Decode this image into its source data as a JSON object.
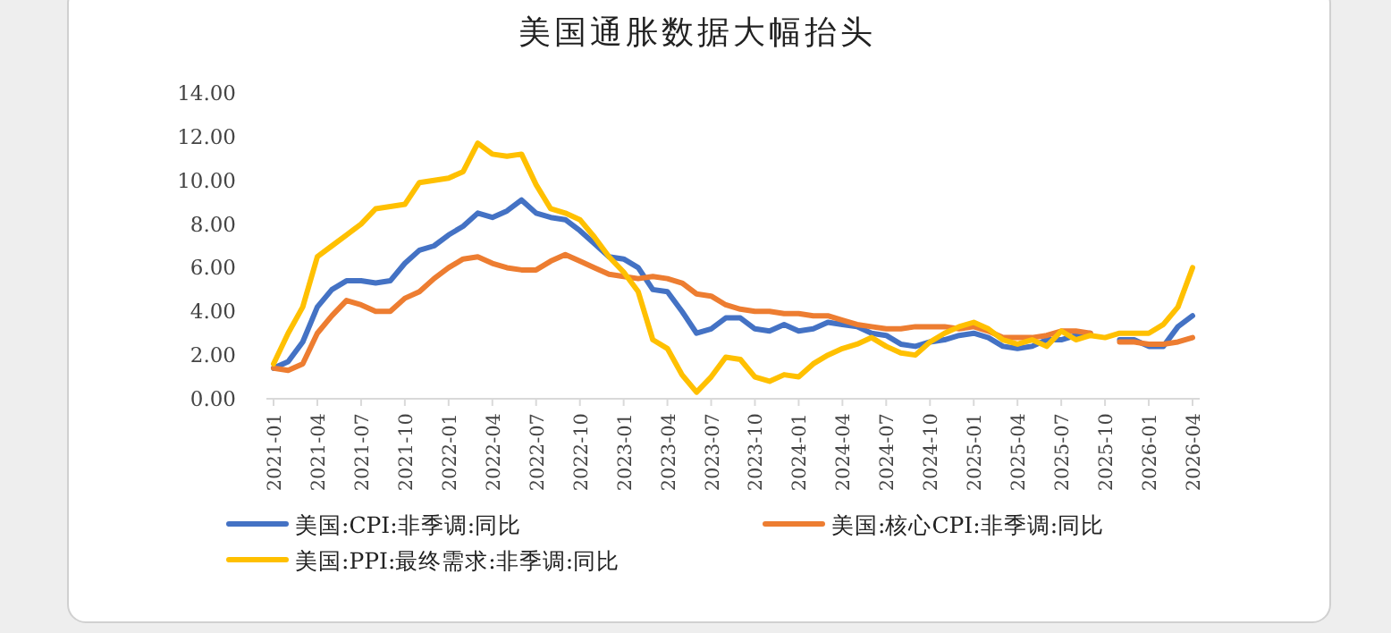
{
  "chart_data": {
    "type": "line",
    "title": "美国通胀数据大幅抬头",
    "categories": [
      "2021-01",
      null,
      null,
      "2021-04",
      null,
      null,
      "2021-07",
      null,
      null,
      "2021-10",
      null,
      null,
      "2022-01",
      null,
      null,
      "2022-04",
      null,
      null,
      "2022-07",
      null,
      null,
      "2022-10",
      null,
      null,
      "2023-01",
      null,
      null,
      "2023-04",
      null,
      null,
      "2023-07",
      null,
      null,
      "2023-10",
      null,
      null,
      "2024-01",
      null,
      null,
      "2024-04",
      null,
      null,
      "2024-07",
      null,
      null,
      "2024-10",
      null,
      null,
      "2025-01",
      null,
      null,
      "2025-04",
      null,
      null,
      "2025-07",
      null,
      null,
      "2025-10",
      null,
      null,
      "2026-01",
      null,
      null,
      "2026-04"
    ],
    "series": [
      {
        "name": "美国:CPI:非季调:同比",
        "color": "#4472c4",
        "values": [
          1.4,
          1.7,
          2.6,
          4.2,
          5.0,
          5.4,
          5.4,
          5.3,
          5.4,
          6.2,
          6.8,
          7.0,
          7.5,
          7.9,
          8.5,
          8.3,
          8.6,
          9.1,
          8.5,
          8.3,
          8.2,
          7.7,
          7.1,
          6.5,
          6.4,
          6.0,
          5.0,
          4.9,
          4.0,
          3.0,
          3.2,
          3.7,
          3.7,
          3.2,
          3.1,
          3.4,
          3.1,
          3.2,
          3.5,
          3.4,
          3.3,
          3.0,
          2.9,
          2.5,
          2.4,
          2.6,
          2.7,
          2.9,
          3.0,
          2.8,
          2.4,
          2.3,
          2.4,
          2.7,
          2.7,
          2.9,
          3.0,
          null,
          2.7,
          2.7,
          2.4,
          2.4,
          3.3,
          3.8
        ]
      },
      {
        "name": "美国:核心CPI:非季调:同比",
        "color": "#ed7d31",
        "values": [
          1.4,
          1.3,
          1.6,
          3.0,
          3.8,
          4.5,
          4.3,
          4.0,
          4.0,
          4.6,
          4.9,
          5.5,
          6.0,
          6.4,
          6.5,
          6.2,
          6.0,
          5.9,
          5.9,
          6.3,
          6.6,
          6.3,
          6.0,
          5.7,
          5.6,
          5.5,
          5.6,
          5.5,
          5.3,
          4.8,
          4.7,
          4.3,
          4.1,
          4.0,
          4.0,
          3.9,
          3.9,
          3.8,
          3.8,
          3.6,
          3.4,
          3.3,
          3.2,
          3.2,
          3.3,
          3.3,
          3.3,
          3.2,
          3.3,
          3.1,
          2.8,
          2.8,
          2.8,
          2.9,
          3.1,
          3.1,
          3.0,
          null,
          2.6,
          2.6,
          2.5,
          2.5,
          2.6,
          2.8
        ]
      },
      {
        "name": "美国:PPI:最终需求:非季调:同比",
        "color": "#ffc000",
        "values": [
          1.6,
          3.0,
          4.2,
          6.5,
          7.0,
          7.5,
          8.0,
          8.7,
          8.8,
          8.9,
          9.9,
          10.0,
          10.1,
          10.4,
          11.7,
          11.2,
          11.1,
          11.2,
          9.8,
          8.7,
          8.5,
          8.2,
          7.4,
          6.5,
          5.8,
          4.9,
          2.7,
          2.3,
          1.1,
          0.3,
          1.0,
          1.9,
          1.8,
          1.0,
          0.8,
          1.1,
          1.0,
          1.6,
          2.0,
          2.3,
          2.5,
          2.8,
          2.4,
          2.1,
          2.0,
          2.6,
          3.0,
          3.3,
          3.5,
          3.2,
          2.7,
          2.5,
          2.7,
          2.4,
          3.1,
          2.7,
          2.9,
          2.8,
          3.0,
          3.0,
          3.0,
          3.4,
          4.2,
          6.0
        ]
      }
    ],
    "ylim": [
      0,
      14
    ],
    "yticks": [
      {
        "value": 0,
        "label": "0.00"
      },
      {
        "value": 2,
        "label": "2.00"
      },
      {
        "value": 4,
        "label": "4.00"
      },
      {
        "value": 6,
        "label": "6.00"
      },
      {
        "value": 8,
        "label": "8.00"
      },
      {
        "value": 10,
        "label": "10.00"
      },
      {
        "value": 12,
        "label": "12.00"
      },
      {
        "value": 14,
        "label": "14.00"
      }
    ],
    "legend": "bottom",
    "line_style": "solid"
  }
}
